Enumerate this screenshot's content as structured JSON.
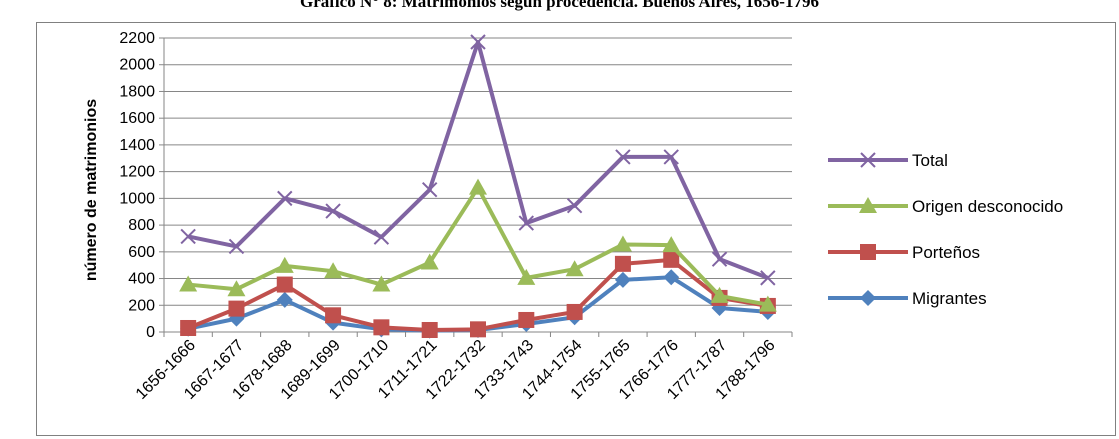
{
  "chart_data": {
    "type": "line",
    "title": "Gráfico N° 8: Matrimonios según procedencia. Buenos Aires, 1656-1796",
    "ylabel": "número de matrimonios",
    "xlabel": "",
    "ylim": [
      0,
      2200
    ],
    "ytick_step": 200,
    "grid": true,
    "legend_position": "right",
    "categories": [
      "1656-1666",
      "1667-1677",
      "1678-1688",
      "1689-1699",
      "1700-1710",
      "1711-1721",
      "1722-1732",
      "1733-1743",
      "1744-1754",
      "1755-1765",
      "1766-1776",
      "1777-1787",
      "1788-1796"
    ],
    "series": [
      {
        "name": "Total",
        "color": "#8064A2",
        "marker": "x",
        "values": [
          715,
          640,
          1000,
          905,
          710,
          1065,
          2170,
          815,
          945,
          1310,
          1310,
          545,
          405
        ]
      },
      {
        "name": "Origen desconocido",
        "color": "#9BBB59",
        "marker": "triangle",
        "values": [
          355,
          320,
          495,
          455,
          355,
          520,
          1080,
          405,
          470,
          655,
          650,
          270,
          205
        ]
      },
      {
        "name": "Porteños",
        "color": "#C0504D",
        "marker": "square",
        "values": [
          30,
          175,
          355,
          125,
          35,
          15,
          20,
          90,
          150,
          510,
          540,
          255,
          195
        ]
      },
      {
        "name": "Migrantes",
        "color": "#4F81BD",
        "marker": "diamond",
        "values": [
          25,
          100,
          240,
          70,
          20,
          10,
          15,
          60,
          110,
          390,
          410,
          180,
          150
        ]
      }
    ]
  }
}
